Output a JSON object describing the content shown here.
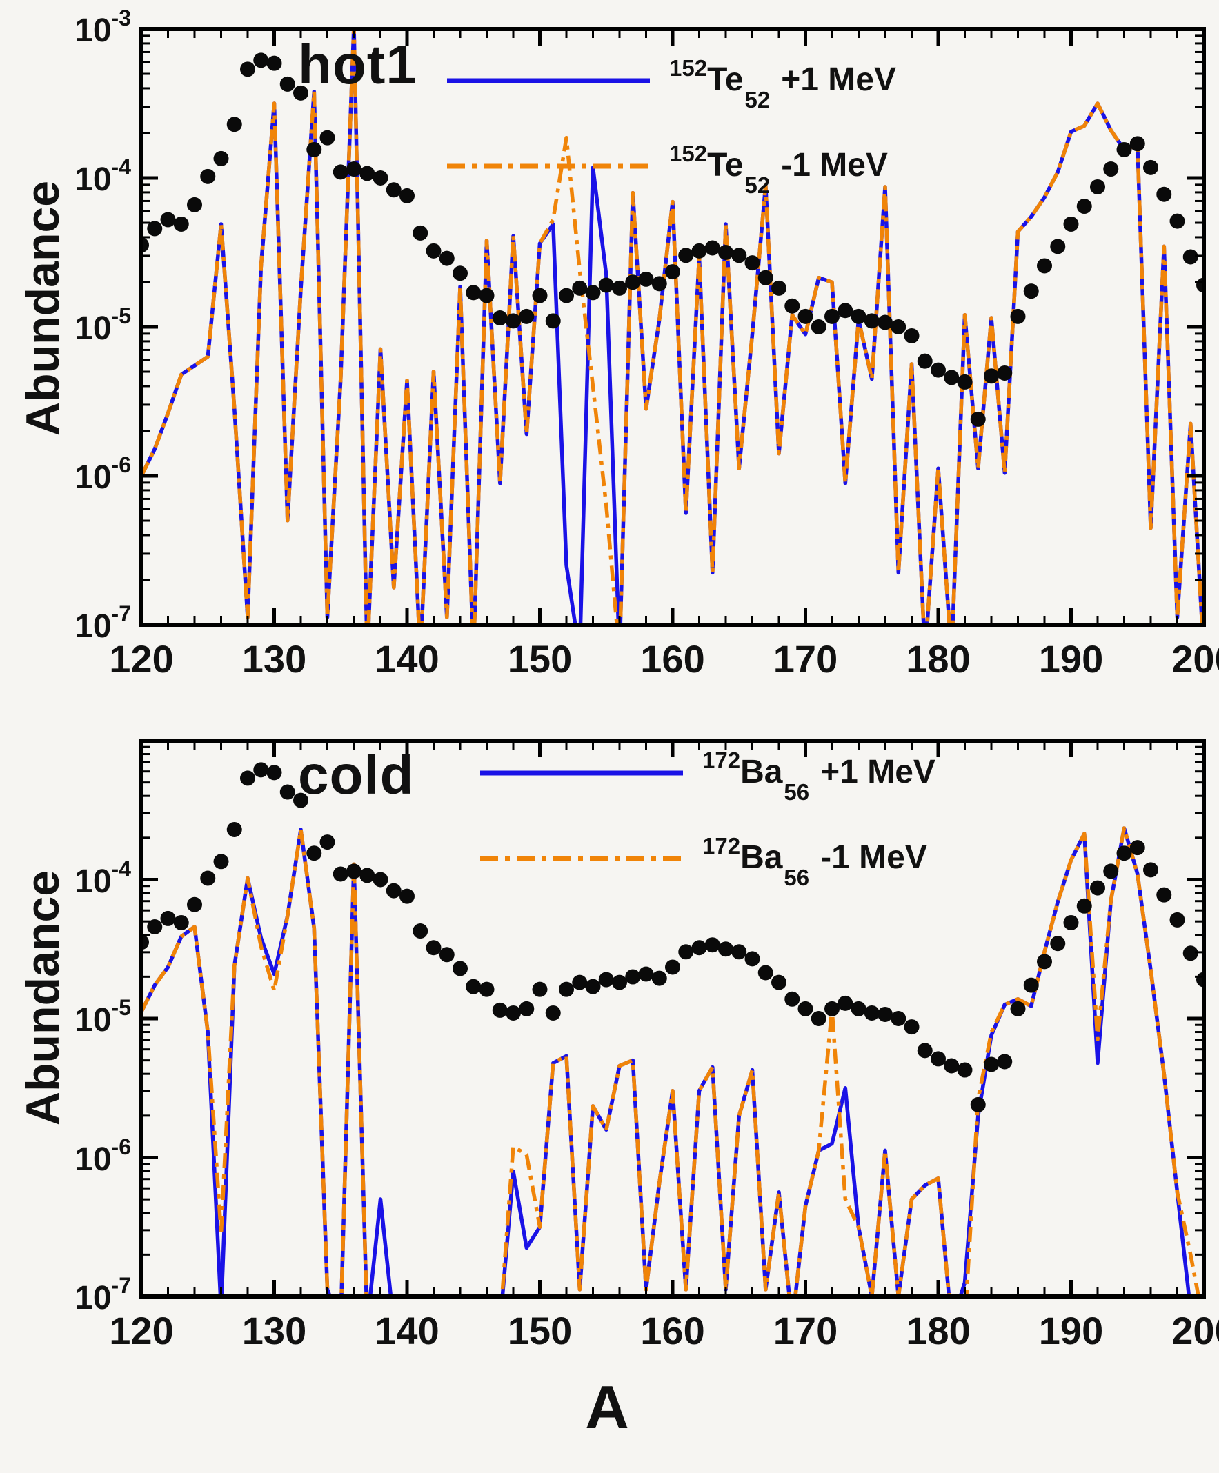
{
  "figure": {
    "ylabel": "Abundance",
    "xlabel": "A",
    "background_color": "#f6f5f2",
    "axis_color": "#000000",
    "dot_color": "#0a0a0a",
    "blue_color": "#1a12e6",
    "orange_color": "#f08408"
  },
  "chart_data": [
    {
      "type": "line",
      "panel_label": "hot1",
      "ylabel": "Abundance",
      "xlim": [
        120,
        200
      ],
      "ylim_log10": [
        -7,
        -3
      ],
      "y_scale": "log10",
      "grid": "off",
      "legend_position": "upper-center-right",
      "x_tick_labels": [
        "120",
        "130",
        "140",
        "150",
        "160",
        "170",
        "180",
        "190",
        "200"
      ],
      "x_tick_values": [
        120,
        130,
        140,
        150,
        160,
        170,
        180,
        190,
        200
      ],
      "x_minor_step": 2,
      "y_tick_labels": [
        {
          "base": "10",
          "exp": "-3"
        },
        {
          "base": "10",
          "exp": "-4"
        },
        {
          "base": "10",
          "exp": "-5"
        },
        {
          "base": "10",
          "exp": "-6"
        },
        {
          "base": "10",
          "exp": "-7"
        }
      ],
      "y_tick_exponents": [
        -3,
        -4,
        -5,
        -6,
        -7
      ],
      "legend": [
        {
          "mass": "152",
          "element": "Te",
          "z": "52",
          "shift": "+1 MeV",
          "color": "#1a12e6",
          "style": "solid"
        },
        {
          "mass": "152",
          "element": "Te",
          "z": "52",
          "shift": "-1 MeV",
          "color": "#f08408",
          "style": "dash-dot"
        }
      ],
      "x_values": [
        120,
        121,
        122,
        123,
        124,
        125,
        126,
        127,
        128,
        129,
        130,
        131,
        132,
        133,
        134,
        135,
        136,
        137,
        138,
        139,
        140,
        141,
        142,
        143,
        144,
        145,
        146,
        147,
        148,
        149,
        150,
        151,
        152,
        153,
        154,
        155,
        156,
        157,
        158,
        159,
        160,
        161,
        162,
        163,
        164,
        165,
        166,
        167,
        168,
        169,
        170,
        171,
        172,
        173,
        174,
        175,
        176,
        177,
        178,
        179,
        180,
        181,
        182,
        183,
        184,
        185,
        186,
        187,
        188,
        189,
        190,
        191,
        192,
        193,
        194,
        195,
        196,
        197,
        198,
        199,
        200
      ],
      "series": [
        {
          "name": "152Te52 +1 MeV",
          "style": "solid",
          "color": "#1a12e6",
          "log10_y": [
            -6.0,
            -5.82,
            -5.58,
            -5.32,
            -5.26,
            -5.2,
            -4.31,
            -5.55,
            -6.95,
            -4.6,
            -3.5,
            -6.3,
            -4.75,
            -3.42,
            -6.95,
            -5.35,
            -2.98,
            -7.2,
            -5.15,
            -6.75,
            -5.36,
            -7.2,
            -5.3,
            -6.95,
            -4.73,
            -7.2,
            -4.42,
            -6.05,
            -4.39,
            -5.72,
            -4.44,
            -4.31,
            -6.6,
            -7.2,
            -3.93,
            -4.65,
            -7.2,
            -4.1,
            -5.55,
            -4.95,
            -4.16,
            -6.25,
            -4.53,
            -6.65,
            -4.31,
            -5.95,
            -5.05,
            -4.05,
            -5.85,
            -4.92,
            -5.05,
            -4.67,
            -4.7,
            -6.05,
            -4.95,
            -5.35,
            -4.06,
            -6.65,
            -5.25,
            -7.2,
            -5.95,
            -7.2,
            -4.92,
            -5.95,
            -4.94,
            -5.98,
            -4.36,
            -4.26,
            -4.13,
            -3.96,
            -3.69,
            -3.65,
            -3.5,
            -3.68,
            -3.81,
            -3.78,
            -6.35,
            -4.46,
            -6.95,
            -5.65,
            -7.2
          ]
        },
        {
          "name": "152Te52 -1 MeV",
          "style": "dash-dot",
          "color": "#f08408",
          "log10_y": [
            -6.0,
            -5.82,
            -5.58,
            -5.32,
            -5.26,
            -5.2,
            -4.31,
            -5.55,
            -6.95,
            -4.6,
            -3.5,
            -6.3,
            -4.75,
            -3.42,
            -6.95,
            -5.35,
            -2.98,
            -7.2,
            -5.15,
            -6.75,
            -5.36,
            -7.2,
            -5.3,
            -6.95,
            -4.73,
            -7.2,
            -4.42,
            -6.05,
            -4.39,
            -5.72,
            -4.44,
            -4.28,
            -3.73,
            -4.62,
            -5.4,
            -6.2,
            -7.2,
            -4.1,
            -5.55,
            -4.95,
            -4.16,
            -6.25,
            -4.53,
            -6.65,
            -4.31,
            -5.95,
            -5.05,
            -4.05,
            -5.85,
            -4.92,
            -5.05,
            -4.67,
            -4.7,
            -6.05,
            -4.95,
            -5.35,
            -4.06,
            -6.65,
            -5.25,
            -7.2,
            -5.95,
            -7.2,
            -4.92,
            -5.95,
            -4.94,
            -5.98,
            -4.36,
            -4.26,
            -4.13,
            -3.96,
            -3.69,
            -3.65,
            -3.5,
            -3.68,
            -3.81,
            -3.78,
            -6.35,
            -4.46,
            -6.95,
            -5.65,
            -7.2
          ]
        },
        {
          "name": "solar abundance dots",
          "marker": "filled-circle",
          "color": "#0a0a0a",
          "log10_y": [
            -4.45,
            -4.34,
            -4.28,
            -4.31,
            -4.18,
            -3.99,
            -3.87,
            -3.64,
            -3.27,
            -3.21,
            -3.23,
            -3.37,
            -3.43,
            -3.81,
            -3.73,
            -3.96,
            -3.94,
            -3.97,
            -4.0,
            -4.08,
            -4.12,
            -4.37,
            -4.49,
            -4.54,
            -4.64,
            -4.77,
            -4.79,
            -4.94,
            -4.96,
            -4.93,
            -4.79,
            -4.96,
            -4.79,
            -4.74,
            -4.77,
            -4.72,
            -4.74,
            -4.7,
            -4.68,
            -4.71,
            -4.63,
            -4.52,
            -4.49,
            -4.47,
            -4.5,
            -4.52,
            -4.57,
            -4.67,
            -4.74,
            -4.86,
            -4.93,
            -5.0,
            -4.93,
            -4.89,
            -4.93,
            -4.96,
            -4.97,
            -5.0,
            -5.06,
            -5.23,
            -5.29,
            -5.34,
            -5.37,
            -5.62,
            -5.33,
            -5.31,
            -4.93,
            -4.76,
            -4.59,
            -4.46,
            -4.31,
            -4.19,
            -4.06,
            -3.94,
            -3.81,
            -3.77,
            -3.93,
            -4.11,
            -4.29,
            -4.53,
            -4.72
          ]
        }
      ]
    },
    {
      "type": "line",
      "panel_label": "cold",
      "ylabel": "Abundance",
      "xlabel": "A",
      "xlim": [
        120,
        200
      ],
      "ylim_log10": [
        -7,
        -3
      ],
      "y_scale": "log10",
      "grid": "off",
      "legend_position": "upper-center-right",
      "x_tick_labels": [
        "120",
        "130",
        "140",
        "150",
        "160",
        "170",
        "180",
        "190",
        "200"
      ],
      "x_tick_values": [
        120,
        130,
        140,
        150,
        160,
        170,
        180,
        190,
        200
      ],
      "x_minor_step": 2,
      "y_tick_labels": [
        {
          "base": "10",
          "exp": "-4"
        },
        {
          "base": "10",
          "exp": "-5"
        },
        {
          "base": "10",
          "exp": "-6"
        },
        {
          "base": "10",
          "exp": "-7"
        }
      ],
      "y_tick_exponents": [
        -4,
        -5,
        -6,
        -7
      ],
      "legend": [
        {
          "mass": "172",
          "element": "Ba",
          "z": "56",
          "shift": "+1 MeV",
          "color": "#1a12e6",
          "style": "solid"
        },
        {
          "mass": "172",
          "element": "Ba",
          "z": "56",
          "shift": "-1 MeV",
          "color": "#f08408",
          "style": "dash-dot"
        }
      ],
      "x_values": [
        120,
        121,
        122,
        123,
        124,
        125,
        126,
        127,
        128,
        129,
        130,
        131,
        132,
        133,
        134,
        135,
        136,
        137,
        138,
        139,
        140,
        141,
        142,
        143,
        144,
        145,
        146,
        147,
        148,
        149,
        150,
        151,
        152,
        153,
        154,
        155,
        156,
        157,
        158,
        159,
        160,
        161,
        162,
        163,
        164,
        165,
        166,
        167,
        168,
        169,
        170,
        171,
        172,
        173,
        174,
        175,
        176,
        177,
        178,
        179,
        180,
        181,
        182,
        183,
        184,
        185,
        186,
        187,
        188,
        189,
        190,
        191,
        192,
        193,
        194,
        195,
        196,
        197,
        198,
        199,
        200
      ],
      "series": [
        {
          "name": "172Ba56 +1 MeV",
          "style": "solid",
          "color": "#1a12e6",
          "log10_y": [
            -4.95,
            -4.76,
            -4.63,
            -4.41,
            -4.34,
            -5.1,
            -7.1,
            -4.62,
            -3.99,
            -4.42,
            -4.68,
            -4.26,
            -3.64,
            -4.35,
            -6.95,
            -7.2,
            -3.89,
            -7.2,
            -6.3,
            -7.2,
            -7.2,
            -7.2,
            -7.2,
            -7.2,
            -7.2,
            -7.2,
            -7.2,
            -7.2,
            -6.1,
            -6.65,
            -6.5,
            -5.32,
            -5.27,
            -6.95,
            -5.63,
            -5.8,
            -5.34,
            -5.3,
            -6.95,
            -6.18,
            -5.52,
            -6.95,
            -5.52,
            -5.35,
            -6.95,
            -5.7,
            -5.37,
            -6.95,
            -6.25,
            -7.2,
            -6.35,
            -5.95,
            -5.9,
            -5.5,
            -6.5,
            -7.0,
            -5.95,
            -7.0,
            -6.3,
            -6.2,
            -6.15,
            -7.2,
            -6.9,
            -5.7,
            -5.12,
            -4.9,
            -4.86,
            -4.91,
            -4.52,
            -4.16,
            -3.86,
            -3.67,
            -5.32,
            -4.15,
            -3.63,
            -3.96,
            -4.65,
            -5.4,
            -6.25,
            -7.1,
            -7.2
          ]
        },
        {
          "name": "172Ba56 -1 MeV",
          "style": "dash-dot",
          "color": "#f08408",
          "log10_y": [
            -4.95,
            -4.76,
            -4.63,
            -4.41,
            -4.34,
            -5.1,
            -6.55,
            -4.62,
            -3.99,
            -4.48,
            -4.8,
            -4.26,
            -3.64,
            -4.35,
            -6.95,
            -7.2,
            -3.89,
            -7.2,
            -7.2,
            -7.2,
            -7.2,
            -7.2,
            -7.2,
            -7.2,
            -7.2,
            -7.2,
            -7.2,
            -7.2,
            -5.92,
            -5.98,
            -6.5,
            -5.32,
            -5.27,
            -6.95,
            -5.63,
            -5.8,
            -5.34,
            -5.3,
            -6.95,
            -6.18,
            -5.52,
            -6.95,
            -5.52,
            -5.35,
            -6.95,
            -5.7,
            -5.37,
            -6.95,
            -6.25,
            -7.2,
            -6.35,
            -5.95,
            -4.93,
            -6.3,
            -6.5,
            -7.0,
            -5.95,
            -7.0,
            -6.3,
            -6.2,
            -6.15,
            -7.2,
            -7.2,
            -5.58,
            -5.1,
            -4.9,
            -4.86,
            -4.91,
            -4.52,
            -4.16,
            -3.86,
            -3.67,
            -5.15,
            -4.15,
            -3.63,
            -3.96,
            -4.65,
            -5.4,
            -6.25,
            -6.7,
            -7.2
          ]
        },
        {
          "name": "solar abundance dots",
          "marker": "filled-circle",
          "color": "#0a0a0a",
          "log10_y": [
            -4.45,
            -4.34,
            -4.28,
            -4.31,
            -4.18,
            -3.99,
            -3.87,
            -3.64,
            -3.27,
            -3.21,
            -3.23,
            -3.37,
            -3.43,
            -3.81,
            -3.73,
            -3.96,
            -3.94,
            -3.97,
            -4.0,
            -4.08,
            -4.12,
            -4.37,
            -4.49,
            -4.54,
            -4.64,
            -4.77,
            -4.79,
            -4.94,
            -4.96,
            -4.93,
            -4.79,
            -4.96,
            -4.79,
            -4.74,
            -4.77,
            -4.72,
            -4.74,
            -4.7,
            -4.68,
            -4.71,
            -4.63,
            -4.52,
            -4.49,
            -4.47,
            -4.5,
            -4.52,
            -4.57,
            -4.67,
            -4.74,
            -4.86,
            -4.93,
            -5.0,
            -4.93,
            -4.89,
            -4.93,
            -4.96,
            -4.97,
            -5.0,
            -5.06,
            -5.23,
            -5.29,
            -5.34,
            -5.37,
            -5.62,
            -5.33,
            -5.31,
            -4.93,
            -4.76,
            -4.59,
            -4.46,
            -4.31,
            -4.19,
            -4.06,
            -3.94,
            -3.81,
            -3.77,
            -3.93,
            -4.11,
            -4.29,
            -4.53,
            -4.72
          ]
        }
      ]
    }
  ]
}
